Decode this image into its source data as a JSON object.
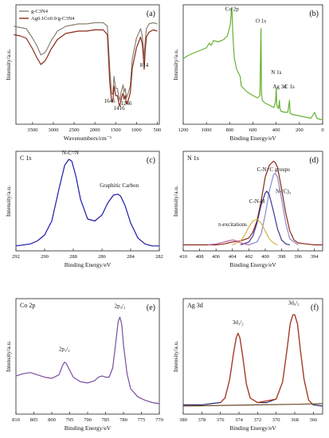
{
  "charts": [
    {
      "panel_label": "(a)",
      "ylabel": "Intensity/a.u.",
      "xlabel": "Wavenumbers/cm⁻¹",
      "legend": [
        "g-C3N4",
        "Ag0.1Co0.9/g-C3N4"
      ],
      "annotations": [
        {
          "text": "1645",
          "x": 1645,
          "y": 0.18
        },
        {
          "text": "1416",
          "x": 1416,
          "y": 0.12
        },
        {
          "text": "1246",
          "x": 1246,
          "y": 0.16
        },
        {
          "text": "814",
          "x": 814,
          "y": 0.48
        }
      ],
      "chart_data": {
        "type": "line",
        "xlim": [
          3900,
          450
        ],
        "ylim": [
          0,
          1
        ],
        "xticks": [
          3500,
          3000,
          2500,
          2000,
          1500,
          1000,
          500
        ],
        "series": [
          {
            "name": "g-C3N4",
            "color": "#8a8070",
            "x": [
              3950,
              3800,
              3650,
              3500,
              3400,
              3300,
              3200,
              3150,
              3050,
              2900,
              2700,
              2400,
              2200,
              2000,
              1800,
              1700,
              1640,
              1600,
              1570,
              1540,
              1500,
              1460,
              1420,
              1400,
              1360,
              1320,
              1300,
              1270,
              1240,
              1200,
              1150,
              1100,
              1000,
              900,
              860,
              840,
              814,
              790,
              760,
              700,
              600,
              500
            ],
            "y": [
              0.82,
              0.81,
              0.8,
              0.72,
              0.66,
              0.58,
              0.6,
              0.63,
              0.7,
              0.78,
              0.82,
              0.84,
              0.84,
              0.85,
              0.85,
              0.82,
              0.45,
              0.26,
              0.25,
              0.4,
              0.3,
              0.3,
              0.22,
              0.2,
              0.28,
              0.33,
              0.27,
              0.3,
              0.22,
              0.26,
              0.32,
              0.55,
              0.72,
              0.8,
              0.74,
              0.66,
              0.55,
              0.7,
              0.8,
              0.84,
              0.85,
              0.84
            ]
          },
          {
            "name": "Ag0.1Co0.9/g-C3N4",
            "color": "#8a2a1a",
            "x": [
              3950,
              3800,
              3650,
              3500,
              3400,
              3300,
              3200,
              3150,
              3050,
              2900,
              2700,
              2400,
              2200,
              2000,
              1800,
              1700,
              1640,
              1600,
              1570,
              1540,
              1500,
              1460,
              1420,
              1400,
              1360,
              1320,
              1300,
              1270,
              1240,
              1200,
              1150,
              1100,
              1000,
              900,
              860,
              840,
              814,
              790,
              760,
              700,
              600,
              500
            ],
            "y": [
              0.75,
              0.74,
              0.72,
              0.63,
              0.56,
              0.5,
              0.53,
              0.56,
              0.63,
              0.71,
              0.76,
              0.78,
              0.78,
              0.79,
              0.79,
              0.75,
              0.34,
              0.2,
              0.19,
              0.32,
              0.24,
              0.24,
              0.17,
              0.15,
              0.22,
              0.26,
              0.21,
              0.24,
              0.17,
              0.2,
              0.26,
              0.47,
              0.64,
              0.73,
              0.67,
              0.59,
              0.46,
              0.62,
              0.73,
              0.77,
              0.79,
              0.78
            ]
          }
        ]
      }
    },
    {
      "panel_label": "(b)",
      "ylabel": "Intensity/a.u.",
      "xlabel": "Binding Energy/eV",
      "annotations": [
        {
          "text": "Co 2p",
          "x": 780,
          "y": 0.95
        },
        {
          "text": "O 1s",
          "x": 531,
          "y": 0.85
        },
        {
          "text": "N 1s",
          "x": 399,
          "y": 0.42
        },
        {
          "text": "Ag 3d",
          "x": 370,
          "y": 0.3
        },
        {
          "text": "C 1s",
          "x": 285,
          "y": 0.3
        }
      ],
      "chart_data": {
        "type": "line",
        "xlim": [
          1200,
          0
        ],
        "ylim": [
          0,
          1
        ],
        "xticks": [
          1200,
          1000,
          800,
          600,
          400,
          200,
          0
        ],
        "series": [
          {
            "name": "",
            "color": "#66b032",
            "x": [
              1200,
              1150,
              1100,
              1050,
              1000,
              975,
              960,
              940,
              900,
              870,
              850,
              820,
              795,
              785,
              781,
              777,
              770,
              760,
              740,
              710,
              700,
              680,
              650,
              600,
              560,
              540,
              531,
              526,
              520,
              500,
              460,
              420,
              405,
              399,
              395,
              380,
              372,
              368,
              360,
              330,
              300,
              288,
              285,
              280,
              250,
              200,
              150,
              100,
              70,
              50,
              20,
              0
            ],
            "y": [
              0.55,
              0.58,
              0.6,
              0.62,
              0.64,
              0.68,
              0.66,
              0.7,
              0.69,
              0.7,
              0.71,
              0.74,
              0.83,
              0.96,
              0.98,
              0.85,
              0.7,
              0.55,
              0.46,
              0.4,
              0.32,
              0.3,
              0.27,
              0.24,
              0.22,
              0.24,
              0.8,
              0.26,
              0.2,
              0.18,
              0.16,
              0.14,
              0.19,
              0.3,
              0.16,
              0.13,
              0.2,
              0.14,
              0.11,
              0.1,
              0.1,
              0.18,
              0.2,
              0.09,
              0.08,
              0.07,
              0.06,
              0.05,
              0.1,
              0.05,
              0.04,
              0.04
            ]
          }
        ]
      }
    },
    {
      "panel_label": "C 1s",
      "corner_label": "(c)",
      "ylabel": "Intensity/a.u.",
      "xlabel": "Binding Energy/eV",
      "annotations": [
        {
          "text": "N-C=N",
          "x": 288.2,
          "y": 0.97
        },
        {
          "text": "Graphitic Carbon",
          "x": 284.8,
          "y": 0.64
        }
      ],
      "chart_data": {
        "type": "line",
        "xlim": [
          292,
          282
        ],
        "ylim": [
          0,
          1
        ],
        "xticks": [
          292,
          290,
          288,
          286,
          284,
          282
        ],
        "series": [
          {
            "name": "",
            "color": "#1a1aaa",
            "x": [
              292,
              291,
              290.5,
              290,
              289.5,
              289,
              288.6,
              288.3,
              288.1,
              287.8,
              287.5,
              287,
              286.5,
              286,
              285.6,
              285.2,
              284.9,
              284.7,
              284.4,
              284,
              283.5,
              283,
              282.5,
              282
            ],
            "y": [
              0.05,
              0.07,
              0.1,
              0.16,
              0.3,
              0.62,
              0.86,
              0.92,
              0.9,
              0.74,
              0.52,
              0.32,
              0.3,
              0.36,
              0.48,
              0.56,
              0.57,
              0.55,
              0.46,
              0.28,
              0.13,
              0.07,
              0.05,
              0.05
            ]
          }
        ]
      }
    },
    {
      "panel_label": "N 1s",
      "corner_label": "(d)",
      "ylabel": "Intensity/a.u.",
      "xlabel": "Binding Energy/eV",
      "annotations": [
        {
          "text": "C-N=C groups",
          "x": 399,
          "y": 0.8
        },
        {
          "text": "C-N-H",
          "x": 401,
          "y": 0.48
        },
        {
          "text": "N-(C)₃",
          "x": 397.8,
          "y": 0.58
        },
        {
          "text": "π-excitations",
          "x": 404,
          "y": 0.25
        }
      ],
      "chart_data": {
        "type": "line",
        "xlim": [
          410,
          393
        ],
        "ylim": [
          0,
          1
        ],
        "xticks": [
          410,
          408,
          406,
          404,
          402,
          400,
          398,
          396,
          394
        ],
        "series": [
          {
            "name": "",
            "color": "#8a2a1a",
            "x": [
              410,
              408,
              406,
              405,
              404.5,
              404,
              403,
              402,
              401.5,
              401,
              400.5,
              400,
              399.5,
              399,
              398.8,
              398.5,
              398,
              397.5,
              397,
              396.5,
              396,
              395,
              394,
              393
            ],
            "y": [
              0.06,
              0.06,
              0.06,
              0.07,
              0.08,
              0.09,
              0.1,
              0.13,
              0.19,
              0.3,
              0.5,
              0.74,
              0.86,
              0.9,
              0.89,
              0.84,
              0.62,
              0.38,
              0.2,
              0.11,
              0.08,
              0.07,
              0.06,
              0.06
            ]
          },
          {
            "name": "",
            "color": "#8f88cc",
            "x": [
              402,
              401,
              400.5,
              400,
              399.5,
              399,
              398.8,
              398.5,
              398,
              397.5,
              397,
              396
            ],
            "y": [
              0.06,
              0.09,
              0.17,
              0.36,
              0.6,
              0.76,
              0.78,
              0.74,
              0.52,
              0.28,
              0.12,
              0.06
            ]
          },
          {
            "name": "",
            "color": "#3a3a8c",
            "x": [
              403,
              402,
              401.5,
              401,
              400.5,
              400,
              399.8,
              399.5,
              399,
              398.5,
              398,
              397.5,
              397
            ],
            "y": [
              0.06,
              0.09,
              0.15,
              0.28,
              0.46,
              0.58,
              0.6,
              0.56,
              0.4,
              0.22,
              0.11,
              0.07,
              0.06
            ]
          },
          {
            "name": "",
            "color": "#d8b040",
            "x": [
              404,
              403,
              402.5,
              402,
              401.5,
              401,
              400.5,
              400,
              399.5,
              399,
              398.5
            ],
            "y": [
              0.06,
              0.1,
              0.16,
              0.24,
              0.3,
              0.32,
              0.28,
              0.2,
              0.12,
              0.08,
              0.06
            ]
          },
          {
            "name": "",
            "color": "#c060a0",
            "x": [
              407,
              406,
              405,
              404.5,
              404,
              403.5,
              403,
              402
            ],
            "y": [
              0.06,
              0.07,
              0.09,
              0.1,
              0.11,
              0.1,
              0.08,
              0.06
            ]
          }
        ]
      }
    },
    {
      "panel_label": "Co 2p",
      "corner_label": "(e)",
      "ylabel": "Intensity/a.u.",
      "xlabel": "Binding Energy/eV",
      "annotations": [
        {
          "text": "2p₁/₂",
          "x": 796.5,
          "y": 0.55
        },
        {
          "text": "2p₃/₂",
          "x": 781,
          "y": 0.92
        }
      ],
      "chart_data": {
        "type": "line",
        "xlim": [
          810,
          770
        ],
        "ylim": [
          0,
          1
        ],
        "xticks": [
          810,
          805,
          800,
          795,
          790,
          785,
          780,
          775,
          770
        ],
        "series": [
          {
            "name": "",
            "color": "#7a4fa0",
            "x": [
              810,
              808,
              806,
              804,
              802,
              800,
              798,
              797,
              796.5,
              796,
              795,
              794,
              792,
              790,
              788,
              787,
              786,
              785,
              784,
              783,
              782,
              781.5,
              781,
              780.5,
              780,
              779,
              778,
              776,
              774,
              772,
              770
            ],
            "y": [
              0.33,
              0.35,
              0.36,
              0.34,
              0.32,
              0.31,
              0.34,
              0.42,
              0.45,
              0.44,
              0.38,
              0.32,
              0.28,
              0.27,
              0.29,
              0.32,
              0.33,
              0.32,
              0.32,
              0.4,
              0.66,
              0.8,
              0.84,
              0.78,
              0.6,
              0.35,
              0.22,
              0.15,
              0.12,
              0.1,
              0.09
            ]
          }
        ]
      }
    },
    {
      "panel_label": "Ag 3d",
      "corner_label": "(f)",
      "ylabel": "Intensity/a.u.",
      "xlabel": "Binding Energy/eV",
      "annotations": [
        {
          "text": "3d₃/₂",
          "x": 374.1,
          "y": 0.78
        },
        {
          "text": "3d₅/₂",
          "x": 368.1,
          "y": 0.95
        }
      ],
      "chart_data": {
        "type": "line",
        "xlim": [
          380,
          365
        ],
        "ylim": [
          0,
          1
        ],
        "xticks": [
          380,
          378,
          376,
          374,
          372,
          370,
          368,
          366
        ],
        "series": [
          {
            "name": "",
            "color": "#2a2a6a",
            "x": [
              380,
              378,
              377,
              376,
              375.5,
              375,
              374.6,
              374.3,
              374.1,
              373.9,
              373.6,
              373.2,
              372.8,
              372,
              371,
              370,
              369.3,
              368.8,
              368.5,
              368.2,
              368,
              367.7,
              367.4,
              367,
              366.5,
              366,
              365
            ],
            "y": [
              0.08,
              0.08,
              0.09,
              0.1,
              0.14,
              0.3,
              0.52,
              0.66,
              0.7,
              0.66,
              0.5,
              0.26,
              0.14,
              0.1,
              0.1,
              0.13,
              0.28,
              0.58,
              0.78,
              0.86,
              0.86,
              0.78,
              0.56,
              0.3,
              0.12,
              0.08,
              0.07
            ]
          },
          {
            "name": "",
            "color": "#b03a1a",
            "x": [
              376,
              375.5,
              375,
              374.6,
              374.3,
              374.1,
              373.9,
              373.6,
              373.2,
              372.8,
              372,
              370,
              369.3,
              368.8,
              368.5,
              368.2,
              368,
              367.7,
              367.4,
              367,
              366.5,
              366
            ],
            "y": [
              0.1,
              0.14,
              0.3,
              0.52,
              0.66,
              0.7,
              0.66,
              0.5,
              0.26,
              0.14,
              0.1,
              0.13,
              0.28,
              0.58,
              0.78,
              0.86,
              0.86,
              0.78,
              0.56,
              0.3,
              0.12,
              0.08
            ]
          },
          {
            "name": "",
            "color": "#6b4a2a",
            "x": [
              380,
              376,
              372,
              368,
              365
            ],
            "y": [
              0.07,
              0.075,
              0.08,
              0.085,
              0.09
            ]
          }
        ]
      }
    }
  ]
}
